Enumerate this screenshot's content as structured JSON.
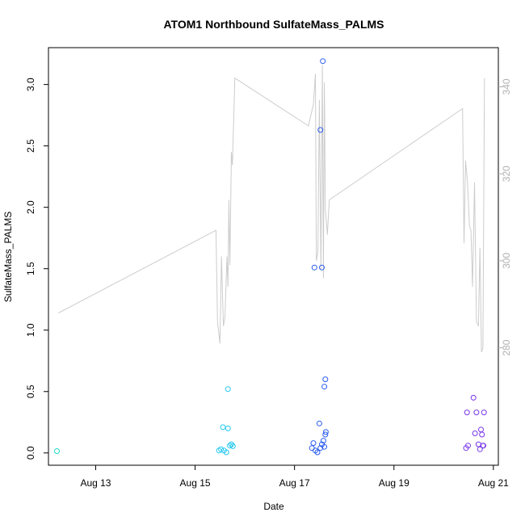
{
  "chart_data": {
    "type": "scatter",
    "title": "ATOM1 Northbound SulfateMass_PALMS",
    "xlabel": "Date",
    "ylabel": "SulfateMass_PALMS",
    "x_ticks": [
      "Aug 13",
      "Aug 15",
      "Aug 17",
      "Aug 19",
      "Aug 21"
    ],
    "x_tick_days": [
      13,
      15,
      17,
      19,
      21
    ],
    "xlim_days": [
      12.05,
      21.1
    ],
    "ylim": [
      -0.1,
      3.3
    ],
    "y_ticks": [
      "0.0",
      "0.5",
      "1.0",
      "1.5",
      "2.0",
      "2.5",
      "3.0"
    ],
    "y_tick_values": [
      0,
      0.5,
      1.0,
      1.5,
      2.0,
      2.5,
      3.0
    ],
    "y2_ticks": [
      "280",
      "300",
      "320",
      "340"
    ],
    "y2_tick_values": [
      280,
      300,
      320,
      340
    ],
    "y2lim": [
      253,
      349
    ],
    "line_color": "#cccccc",
    "axis_color": "#000000",
    "right_axis_color": "#b0b0b0",
    "series": [
      {
        "color": "#22d8c8",
        "points": [
          [
            12.22,
            0.015
          ]
        ]
      },
      {
        "color": "#22c8f0",
        "points": [
          [
            15.48,
            0.02
          ],
          [
            15.52,
            0.03
          ],
          [
            15.56,
            0.21
          ],
          [
            15.58,
            0.02
          ],
          [
            15.63,
            0.005
          ],
          [
            15.66,
            0.2
          ],
          [
            15.7,
            0.06
          ],
          [
            15.73,
            0.07
          ],
          [
            15.76,
            0.055
          ],
          [
            15.66,
            0.52
          ]
        ]
      },
      {
        "color": "#2a5cf0",
        "points": [
          [
            17.35,
            0.04
          ],
          [
            17.38,
            0.08
          ],
          [
            17.42,
            0.02
          ],
          [
            17.46,
            0.005
          ],
          [
            17.5,
            0.24
          ],
          [
            17.52,
            0.04
          ],
          [
            17.55,
            0.07
          ],
          [
            17.58,
            0.1
          ],
          [
            17.6,
            0.05
          ],
          [
            17.62,
            0.15
          ],
          [
            17.63,
            0.17
          ],
          [
            17.4,
            1.51
          ],
          [
            17.55,
            1.51
          ],
          [
            17.52,
            2.63
          ],
          [
            17.57,
            3.19
          ],
          [
            17.62,
            0.6
          ],
          [
            17.6,
            0.54
          ]
        ]
      },
      {
        "color": "#7a36e8",
        "points": [
          [
            20.45,
            0.04
          ],
          [
            20.49,
            0.06
          ],
          [
            20.47,
            0.33
          ],
          [
            20.6,
            0.45
          ],
          [
            20.63,
            0.16
          ],
          [
            20.66,
            0.33
          ],
          [
            20.7,
            0.07
          ],
          [
            20.73,
            0.03
          ],
          [
            20.75,
            0.19
          ],
          [
            20.77,
            0.15
          ],
          [
            20.79,
            0.06
          ],
          [
            20.8,
            0.06
          ],
          [
            20.81,
            0.33
          ]
        ]
      }
    ],
    "line_series": {
      "points": [
        [
          12.25,
          288
        ],
        [
          15.42,
          307
        ],
        [
          15.45,
          286
        ],
        [
          15.5,
          281
        ],
        [
          15.53,
          301
        ],
        [
          15.57,
          285
        ],
        [
          15.6,
          287
        ],
        [
          15.64,
          301
        ],
        [
          15.66,
          294
        ],
        [
          15.68,
          314
        ],
        [
          15.7,
          299
        ],
        [
          15.73,
          325
        ],
        [
          15.75,
          322
        ],
        [
          15.8,
          342
        ],
        [
          17.28,
          331
        ],
        [
          17.38,
          336
        ],
        [
          17.42,
          343
        ],
        [
          17.44,
          300
        ],
        [
          17.47,
          302
        ],
        [
          17.5,
          337
        ],
        [
          17.53,
          298
        ],
        [
          17.56,
          345
        ],
        [
          17.58,
          296
        ],
        [
          17.6,
          341
        ],
        [
          17.62,
          312
        ],
        [
          17.66,
          306
        ],
        [
          17.7,
          314
        ],
        [
          20.38,
          335
        ],
        [
          20.41,
          304
        ],
        [
          20.44,
          323
        ],
        [
          20.48,
          318
        ],
        [
          20.52,
          308
        ],
        [
          20.55,
          307
        ],
        [
          20.58,
          294
        ],
        [
          20.62,
          318
        ],
        [
          20.66,
          286
        ],
        [
          20.7,
          285
        ],
        [
          20.73,
          303
        ],
        [
          20.76,
          279
        ],
        [
          20.79,
          280
        ],
        [
          20.82,
          342
        ]
      ]
    }
  }
}
